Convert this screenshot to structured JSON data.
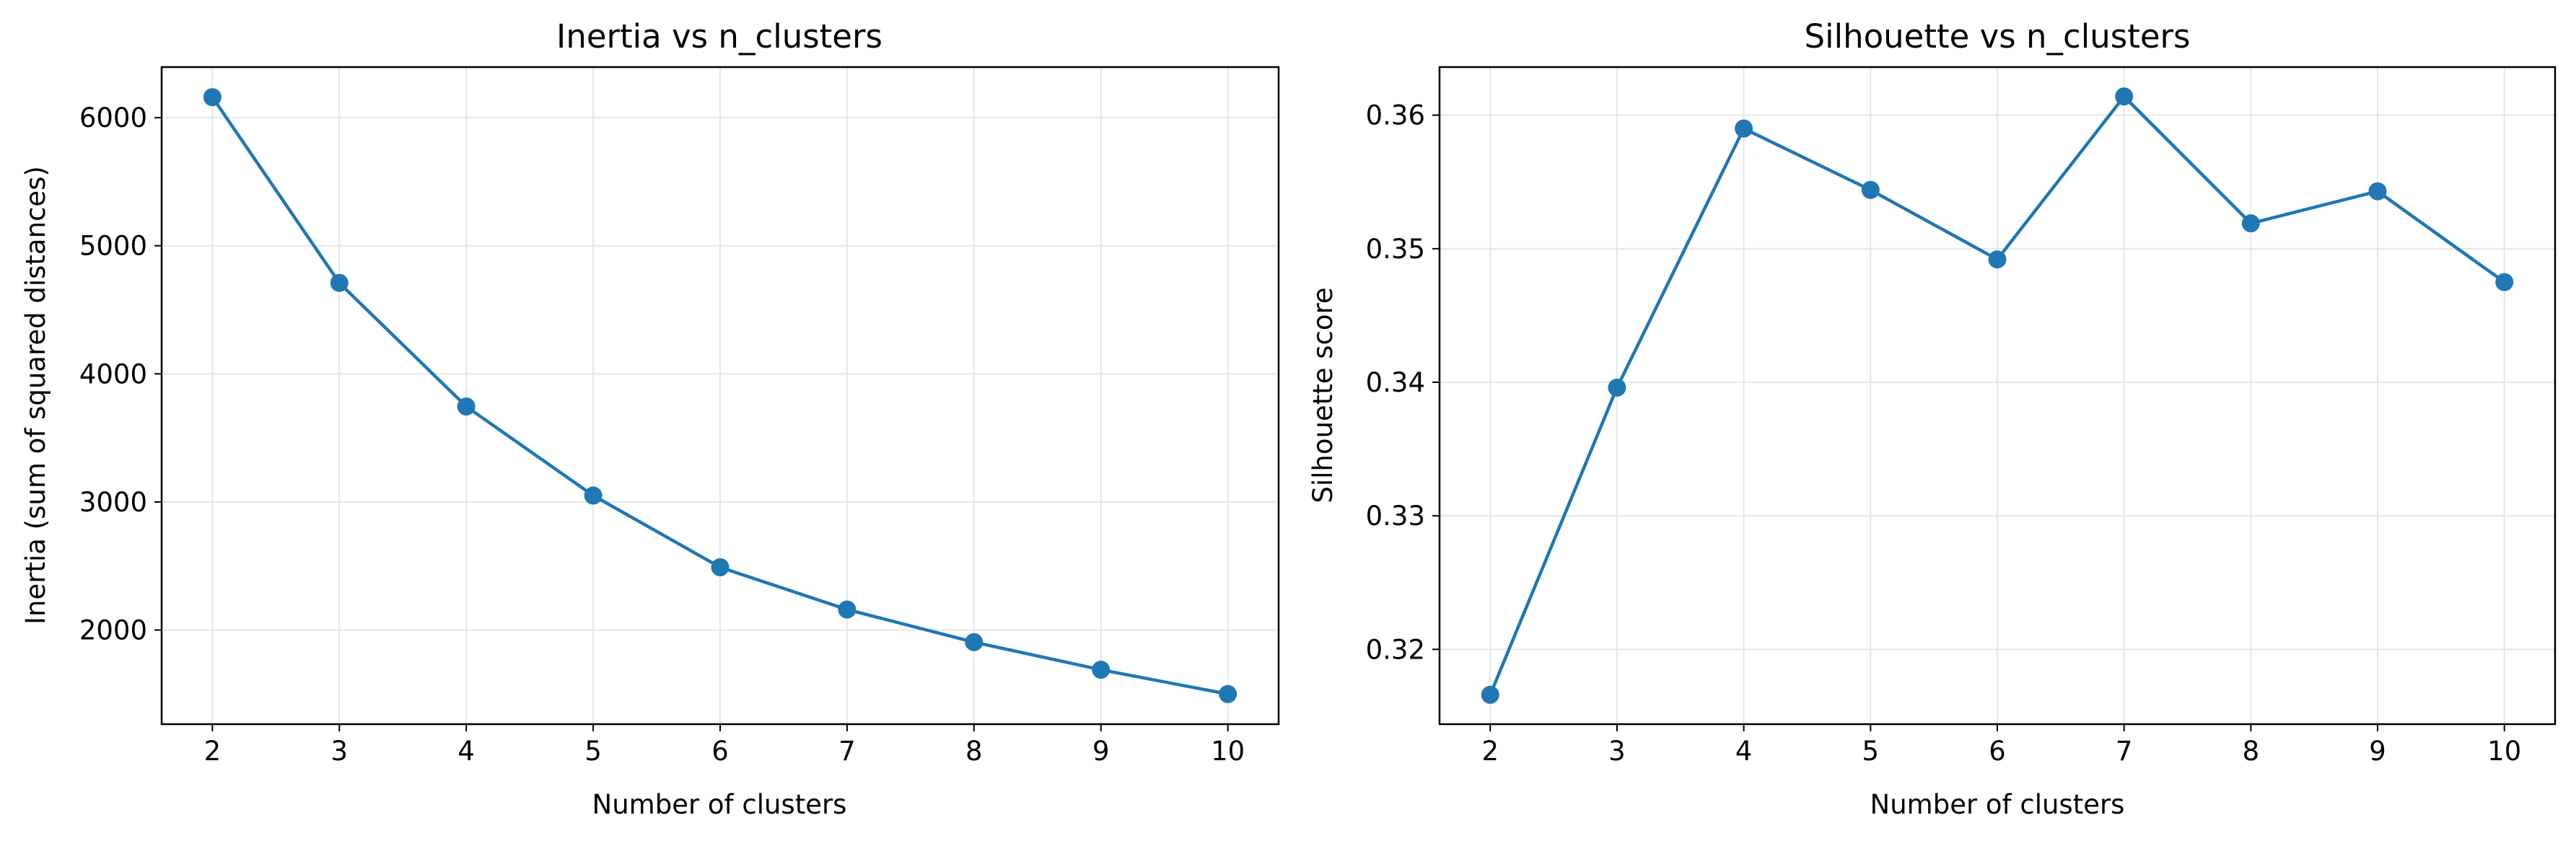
{
  "chart_data": [
    {
      "type": "line",
      "title": "Inertia vs n_clusters",
      "xlabel": "Number of clusters",
      "ylabel": "Inertia (sum of squared distances)",
      "x": [
        2,
        3,
        4,
        5,
        6,
        7,
        8,
        9,
        10
      ],
      "xticks": [
        2,
        3,
        4,
        5,
        6,
        7,
        8,
        9,
        10
      ],
      "xtick_labels": [
        "2",
        "3",
        "4",
        "5",
        "6",
        "7",
        "8",
        "9",
        "10"
      ],
      "yticks": [
        2000,
        3000,
        4000,
        5000,
        6000
      ],
      "ytick_labels": [
        "2000",
        "3000",
        "4000",
        "5000",
        "6000"
      ],
      "xlim": [
        1.6,
        10.4
      ],
      "ylim": [
        1265,
        6395
      ],
      "grid": true,
      "series": [
        {
          "values": [
            6160,
            4710,
            3745,
            3050,
            2490,
            2160,
            1905,
            1690,
            1500
          ],
          "color": "#1f77b4",
          "marker": "circle"
        }
      ]
    },
    {
      "type": "line",
      "title": "Silhouette vs n_clusters",
      "xlabel": "Number of clusters",
      "ylabel": "Silhouette score",
      "x": [
        2,
        3,
        4,
        5,
        6,
        7,
        8,
        9,
        10
      ],
      "xticks": [
        2,
        3,
        4,
        5,
        6,
        7,
        8,
        9,
        10
      ],
      "xtick_labels": [
        "2",
        "3",
        "4",
        "5",
        "6",
        "7",
        "8",
        "9",
        "10"
      ],
      "yticks": [
        0.32,
        0.33,
        0.34,
        0.35,
        0.36
      ],
      "ytick_labels": [
        "0.32",
        "0.33",
        "0.34",
        "0.35",
        "0.36"
      ],
      "xlim": [
        1.6,
        10.4
      ],
      "ylim": [
        0.3144,
        0.3636
      ],
      "grid": true,
      "series": [
        {
          "values": [
            0.3166,
            0.3396,
            0.359,
            0.3544,
            0.3492,
            0.3614,
            0.3519,
            0.3543,
            0.3475
          ],
          "color": "#1f77b4",
          "marker": "circle"
        }
      ]
    }
  ]
}
